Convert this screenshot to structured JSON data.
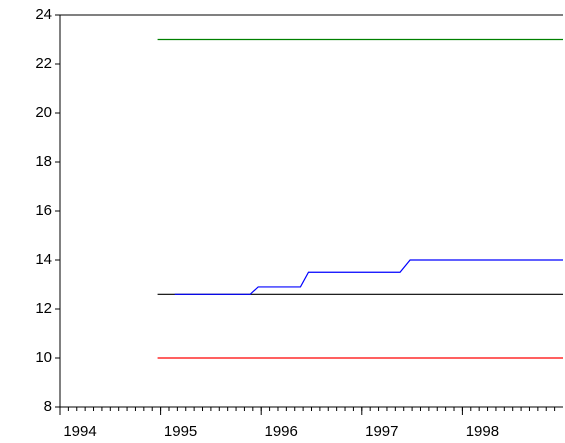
{
  "chart_data": {
    "type": "line",
    "xlim": [
      1994,
      1999
    ],
    "xticks": [
      1994,
      1995,
      1996,
      1997,
      1998
    ],
    "ylim": [
      8,
      24
    ],
    "yticks": [
      8,
      10,
      12,
      14,
      16,
      18,
      20,
      22,
      24
    ],
    "series": [
      {
        "color": "#008000",
        "x": [
          1994.97,
          1999.0
        ],
        "values": [
          23,
          23
        ]
      },
      {
        "color": "#000000",
        "x": [
          1994.97,
          1999.0
        ],
        "values": [
          12.6,
          12.6
        ]
      },
      {
        "color": "#ff0000",
        "x": [
          1994.97,
          1999.0
        ],
        "values": [
          10,
          10
        ]
      },
      {
        "color": "#0000ff",
        "x": [
          1995.14,
          1995.89,
          1995.97,
          1996.39,
          1996.47,
          1997.38,
          1997.48,
          1999.0
        ],
        "values": [
          12.6,
          12.6,
          12.9,
          12.9,
          13.5,
          13.5,
          14,
          14
        ]
      }
    ]
  }
}
